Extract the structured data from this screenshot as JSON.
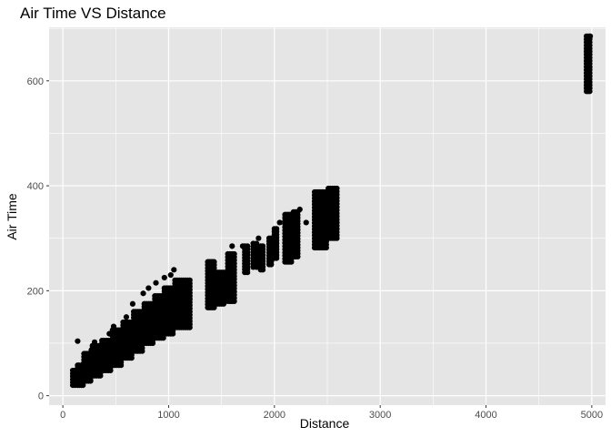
{
  "chart_data": {
    "type": "scatter",
    "title": "Air Time VS Distance",
    "xlabel": "Distance",
    "ylabel": "Air Time",
    "xlim": [
      -130,
      5130
    ],
    "ylim": [
      -18,
      702
    ],
    "x_ticks": [
      0,
      1000,
      2000,
      3000,
      4000,
      5000
    ],
    "x_tick_labels": [
      "0",
      "1000",
      "2000",
      "3000",
      "4000",
      "5000"
    ],
    "y_ticks": [
      0,
      200,
      400,
      600
    ],
    "y_tick_labels": [
      "0",
      "200",
      "400",
      "600"
    ],
    "grid": true,
    "legend": "none",
    "colors": {
      "panel_background": "#e5e5e5",
      "gridline": "#ffffff",
      "point": "#000000"
    },
    "clusters": [
      {
        "x": [
          94,
          116
        ],
        "y_min": 20,
        "y_max": 48
      },
      {
        "x": [
          140,
          155,
          175,
          190
        ],
        "y_min": 20,
        "y_max": 58
      },
      {
        "x": [
          200,
          213,
          228,
          244,
          262
        ],
        "y_min": 28,
        "y_max": 80
      },
      {
        "x": [
          280,
          300,
          320,
          340,
          355
        ],
        "y_min": 38,
        "y_max": 95
      },
      {
        "x": [
          370,
          390,
          410,
          430,
          450
        ],
        "y_min": 48,
        "y_max": 105
      },
      {
        "x": [
          470,
          490,
          510,
          530,
          550
        ],
        "y_min": 58,
        "y_max": 125
      },
      {
        "x": [
          570,
          590,
          610,
          630,
          650
        ],
        "y_min": 72,
        "y_max": 140
      },
      {
        "x": [
          670,
          690,
          710,
          730,
          750
        ],
        "y_min": 85,
        "y_max": 160
      },
      {
        "x": [
          770,
          790,
          810,
          830,
          850
        ],
        "y_min": 100,
        "y_max": 175
      },
      {
        "x": [
          870,
          890,
          910,
          930,
          950
        ],
        "y_min": 110,
        "y_max": 190
      },
      {
        "x": [
          960,
          980,
          1000,
          1020,
          1040
        ],
        "y_min": 118,
        "y_max": 205
      },
      {
        "x": [
          1060,
          1080,
          1100,
          1120,
          1140,
          1160,
          1180,
          1200
        ],
        "y_min": 130,
        "y_max": 220
      },
      {
        "x": [
          1370,
          1385,
          1400,
          1415,
          1430
        ],
        "y_min": 168,
        "y_max": 255
      },
      {
        "x": [
          1460,
          1480,
          1500,
          1520
        ],
        "y_min": 175,
        "y_max": 235
      },
      {
        "x": [
          1560,
          1580,
          1600,
          1620
        ],
        "y_min": 180,
        "y_max": 270
      },
      {
        "x": [
          1720,
          1745
        ],
        "y_min": 235,
        "y_max": 285
      },
      {
        "x": [
          1800,
          1830
        ],
        "y_min": 245,
        "y_max": 290
      },
      {
        "x": [
          1870,
          1890
        ],
        "y_min": 240,
        "y_max": 285
      },
      {
        "x": [
          1950,
          1970
        ],
        "y_min": 250,
        "y_max": 300
      },
      {
        "x": [
          2000,
          2020
        ],
        "y_min": 262,
        "y_max": 318
      },
      {
        "x": [
          2100,
          2115,
          2130,
          2145,
          2160
        ],
        "y_min": 255,
        "y_max": 345
      },
      {
        "x": [
          2180,
          2200,
          2220
        ],
        "y_min": 265,
        "y_max": 350
      },
      {
        "x": [
          2380,
          2395,
          2410,
          2425,
          2440,
          2455,
          2470,
          2490
        ],
        "y_min": 282,
        "y_max": 388
      },
      {
        "x": [
          2510,
          2530,
          2550,
          2570,
          2590
        ],
        "y_min": 300,
        "y_max": 395
      },
      {
        "x": [
          4950,
          4965,
          4980
        ],
        "y_min": 580,
        "y_max": 685
      }
    ],
    "points": [
      [
        140,
        104
      ],
      [
        270,
        87
      ],
      [
        300,
        102
      ],
      [
        440,
        118
      ],
      [
        480,
        132
      ],
      [
        600,
        150
      ],
      [
        660,
        175
      ],
      [
        760,
        195
      ],
      [
        810,
        205
      ],
      [
        880,
        215
      ],
      [
        960,
        225
      ],
      [
        1020,
        230
      ],
      [
        1050,
        240
      ],
      [
        1600,
        285
      ],
      [
        1700,
        285
      ],
      [
        1850,
        300
      ],
      [
        2050,
        330
      ],
      [
        2240,
        355
      ],
      [
        2300,
        330
      ],
      [
        4960,
        660
      ],
      [
        4975,
        645
      ],
      [
        4978,
        623
      ],
      [
        4985,
        685
      ],
      [
        4960,
        595
      ]
    ]
  }
}
